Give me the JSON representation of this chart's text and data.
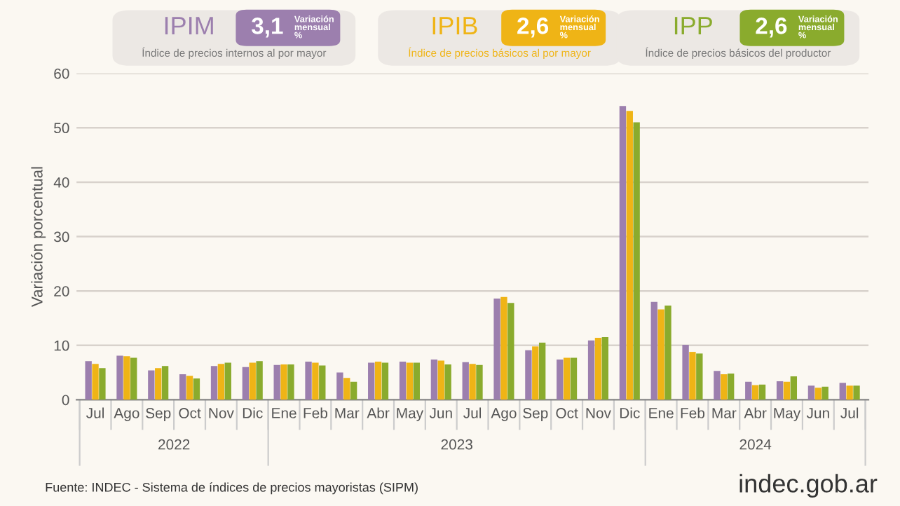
{
  "chart_data": {
    "type": "bar",
    "ylabel": "Variación porcentual",
    "categories": [
      "Jul",
      "Ago",
      "Sep",
      "Oct",
      "Nov",
      "Dic",
      "Ene",
      "Feb",
      "Mar",
      "Abr",
      "May",
      "Jun",
      "Jul",
      "Ago",
      "Sep",
      "Oct",
      "Nov",
      "Dic",
      "Ene",
      "Feb",
      "Mar",
      "Abr",
      "May",
      "Jun",
      "Jul"
    ],
    "series": [
      {
        "name": "IPIM",
        "color": "#9c7fae",
        "values": [
          7.1,
          8.1,
          5.4,
          4.7,
          6.2,
          6.0,
          6.4,
          7.0,
          5.0,
          6.8,
          7.0,
          7.4,
          6.9,
          18.6,
          9.1,
          7.4,
          10.9,
          54.0,
          18.0,
          10.1,
          5.3,
          3.3,
          3.4,
          2.6,
          3.1
        ]
      },
      {
        "name": "IPIB",
        "color": "#efb416",
        "values": [
          6.6,
          8.0,
          5.8,
          4.4,
          6.6,
          6.8,
          6.5,
          6.8,
          4.0,
          7.0,
          6.8,
          7.2,
          6.6,
          18.9,
          9.8,
          7.7,
          11.4,
          53.1,
          16.6,
          8.8,
          4.7,
          2.7,
          3.3,
          2.2,
          2.6
        ]
      },
      {
        "name": "IPP",
        "color": "#8aab2d",
        "values": [
          5.8,
          7.7,
          6.2,
          3.9,
          6.8,
          7.1,
          6.5,
          6.3,
          3.3,
          6.8,
          6.8,
          6.5,
          6.4,
          17.8,
          10.5,
          7.7,
          11.5,
          51.0,
          17.3,
          8.5,
          4.8,
          2.8,
          4.3,
          2.4,
          2.6
        ]
      }
    ],
    "ylim": [
      0,
      60
    ],
    "yticks": [
      0,
      10,
      20,
      30,
      40,
      50,
      60
    ],
    "grid": "y",
    "legend": "top",
    "annotations": [
      "3,1",
      "Variación mensual %",
      "Índice de precios internos al por mayor",
      "2,6",
      "Variación mensual %",
      "Índice de precios básicos al por mayor",
      "2,6",
      "Variación mensual %",
      "Índice de precios básicos del productor",
      "2022",
      "2023",
      "2024",
      "Fuente: INDEC - Sistema de índices de precios mayoristas (SIPM)",
      "indec.gob.ar"
    ]
  }
}
